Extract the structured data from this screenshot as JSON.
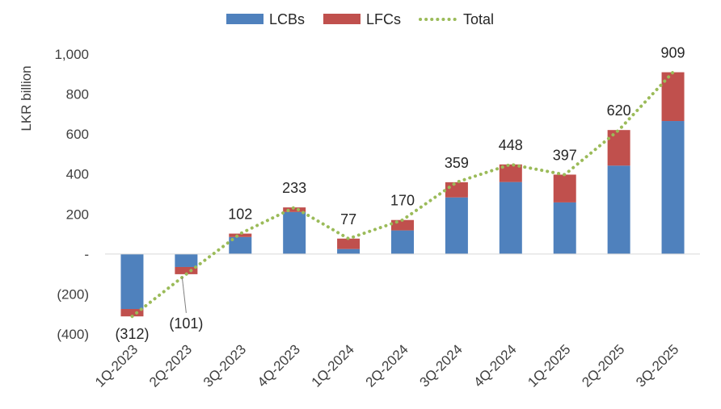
{
  "chart_data": {
    "type": "bar",
    "stacked": true,
    "ylabel": "LKR billion",
    "ylim": [
      -400,
      1000
    ],
    "yticks": [
      {
        "value": 1000,
        "label": "1,000"
      },
      {
        "value": 800,
        "label": "800"
      },
      {
        "value": 600,
        "label": "600"
      },
      {
        "value": 400,
        "label": "400"
      },
      {
        "value": 200,
        "label": "200"
      },
      {
        "value": 0,
        "label": "-"
      },
      {
        "value": -200,
        "label": "(200)"
      },
      {
        "value": -400,
        "label": "(400)"
      }
    ],
    "categories": [
      "1Q-2023",
      "2Q-2023",
      "3Q-2023",
      "4Q-2023",
      "1Q-2024",
      "2Q-2024",
      "3Q-2024",
      "4Q-2024",
      "1Q-2025",
      "2Q-2025",
      "3Q-2025"
    ],
    "series": [
      {
        "name": "LCBs",
        "type": "bar",
        "color": "#4F81BD",
        "values": [
          -275,
          -65,
          85,
          210,
          25,
          118,
          283,
          360,
          258,
          442,
          665
        ]
      },
      {
        "name": "LFCs",
        "type": "bar",
        "color": "#C0504D",
        "values": [
          -37,
          -36,
          17,
          23,
          52,
          52,
          76,
          88,
          139,
          178,
          244
        ]
      },
      {
        "name": "Total",
        "type": "line",
        "style": "dotted",
        "color": "#9BBB59",
        "values": [
          -312,
          -101,
          102,
          233,
          77,
          170,
          359,
          448,
          397,
          620,
          909
        ]
      }
    ],
    "data_labels": [
      "(312)",
      "(101)",
      "102",
      "233",
      "77",
      "170",
      "359",
      "448",
      "397",
      "620",
      "909"
    ],
    "legend": {
      "position": "top-center",
      "items": [
        "LCBs",
        "LFCs",
        "Total"
      ]
    },
    "grid": false
  }
}
